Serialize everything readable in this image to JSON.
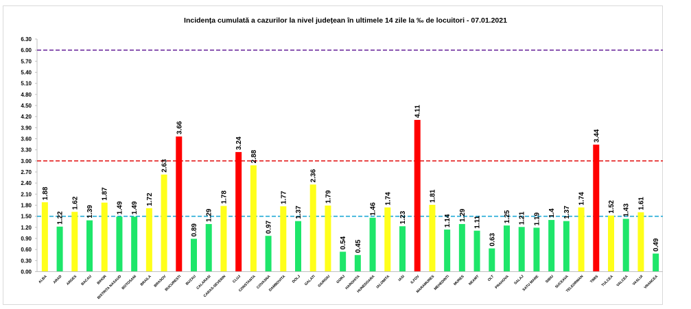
{
  "chart_data": {
    "type": "bar",
    "title": "Incidența cumulată a cazurilor la nivel județean în ultimele 14 zile la ‰ de locuitori - 07.01.2021",
    "xlabel": "",
    "ylabel": "",
    "ylim": [
      0,
      6.3
    ],
    "ytick_step": 0.3,
    "grid": false,
    "legend": "none",
    "categories": [
      "ALBA",
      "ARAD",
      "ARGES",
      "BACAU",
      "BIHOR",
      "BISTRITA NASAUD",
      "BOTOSANI",
      "BRAILA",
      "BRASOV",
      "BUCURESTI",
      "BUZAU",
      "CALARASI",
      "CARAS-SEVERIN",
      "CLUJ",
      "CONSTANTA",
      "COVASNA",
      "DAMBOVITA",
      "DOLJ",
      "GALATI",
      "GIURGIU",
      "GORJ",
      "HARGHITA",
      "HUNEDOARA",
      "IALOMITA",
      "IASI",
      "ILFOV",
      "MARAMURES",
      "MEHEDINTI",
      "MURES",
      "NEAMT",
      "OLT",
      "PRAHOVA",
      "SALAJ",
      "SATU MARE",
      "SIBIU",
      "SUCEAVA",
      "TELEORMAN",
      "TIMIS",
      "TULCEA",
      "VALCEA",
      "VASLUI",
      "VRANCEA"
    ],
    "values": [
      1.88,
      1.22,
      1.62,
      1.39,
      1.87,
      1.49,
      1.49,
      1.72,
      2.63,
      3.66,
      0.89,
      1.29,
      1.78,
      3.24,
      2.88,
      0.97,
      1.77,
      1.37,
      2.36,
      1.79,
      0.54,
      0.45,
      1.46,
      1.74,
      1.23,
      4.11,
      1.81,
      1.14,
      1.29,
      1.11,
      0.63,
      1.25,
      1.21,
      1.19,
      1.4,
      1.37,
      1.74,
      3.44,
      1.52,
      1.43,
      1.61,
      0.49
    ],
    "value_labels": [
      "1.88",
      "1.22",
      "1.62",
      "1.39",
      "1.87",
      "1.49",
      "1.49",
      "1.72",
      "2.63",
      "3.66",
      "0.89",
      "1.29",
      "1.78",
      "3.24",
      "2.88",
      "0.97",
      "1.77",
      "1.37",
      "2.36",
      "1.79",
      "0.54",
      "0.45",
      "1.46",
      "1.74",
      "1.23",
      "4.11",
      "1.81",
      "1.14",
      "1.29",
      "1.11",
      "0.63",
      "1.25",
      "1.21",
      "1.19",
      "1.4",
      "1.37",
      "1.74",
      "3.44",
      "1.52",
      "1.43",
      "1.61",
      "0.49"
    ],
    "thresholds": [
      {
        "value": 1.5,
        "color": "#1fa9d6",
        "style": "dashed"
      },
      {
        "value": 3.0,
        "color": "#e41e1e",
        "style": "dashed"
      },
      {
        "value": 6.0,
        "color": "#7030a0",
        "style": "dashed"
      }
    ],
    "colors": {
      "green": "#1ee66a",
      "yellow": "#ffff1a",
      "red": "#ff0000"
    },
    "color_rule": "green when value < 1.5, yellow when 1.5 <= value <= 3, red when value > 3"
  }
}
